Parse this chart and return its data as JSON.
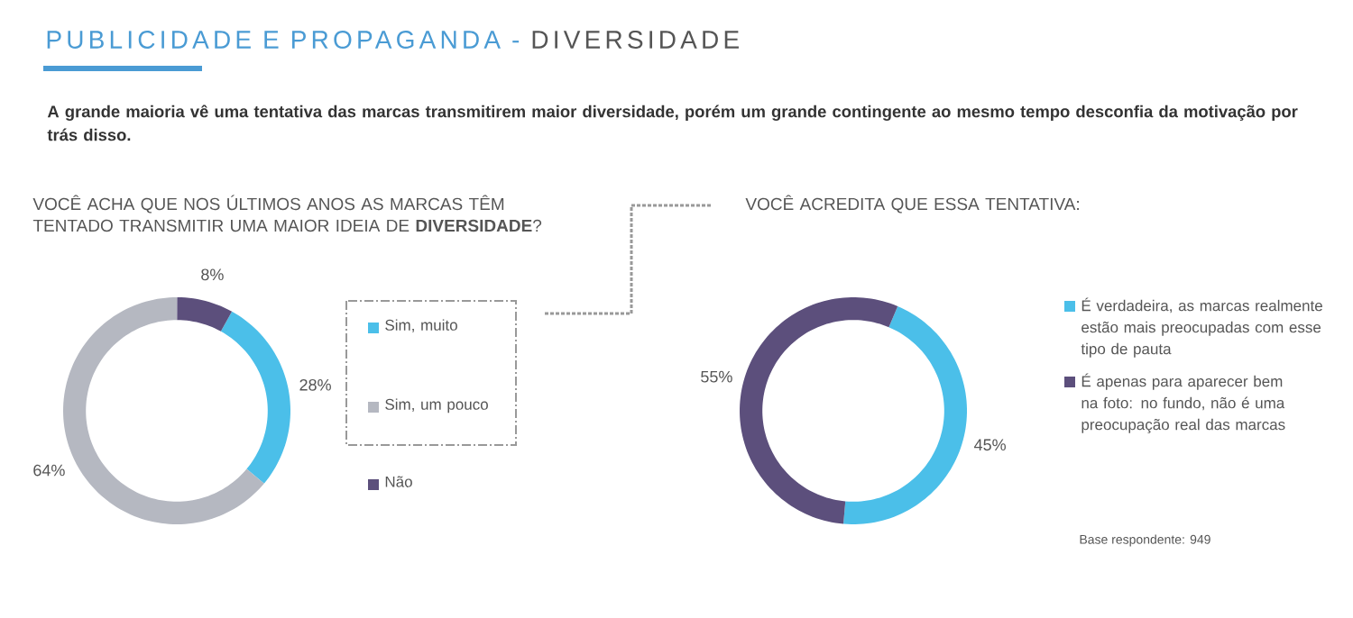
{
  "chart_data": [
    {
      "type": "donut",
      "title": "VOCÊ ACHA QUE NOS ÚLTIMOS ANOS AS MARCAS TÊM TENTADO TRANSMITIR UMA MAIOR IDEIA DE **DIVERSIDADE**?",
      "subtitle": "A grande maioria vê uma tentativa das marcas transmitirem maior diversidade, porém um grande contingente ao mesmo tempo desconfia da motivação por trás disso.",
      "annotations": [
        "PUBLICIDADE E PROPAGANDA -",
        "DIVERSIDADE"
      ],
      "categories": [
        "Sim, muito",
        "Sim, um pouco",
        "Não"
      ],
      "values": [
        28,
        64,
        8
      ],
      "value_labels": [
        "28%",
        "64%",
        "8%"
      ],
      "colors": [
        "#4bbfe9",
        "#b5b8c1",
        "#5c4f7c"
      ],
      "legend": "right"
    },
    {
      "type": "donut",
      "title": "VOCÊ ACREDITA QUE ESSA TENTATIVA:",
      "annotations": [
        "Base respondente: 949"
      ],
      "categories": [
        "É verdadeira, as marcas realmente estão mais preocupadas com esse tipo de pauta",
        "É apenas para aparecer bem na foto: no fundo, não é uma preocupação real das marcas"
      ],
      "values": [
        45,
        55
      ],
      "value_labels": [
        "45%",
        "55%"
      ],
      "colors": [
        "#4bbfe9",
        "#5c4f7c"
      ],
      "legend": "right"
    }
  ]
}
